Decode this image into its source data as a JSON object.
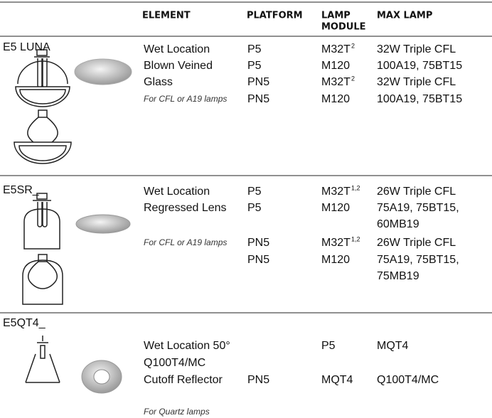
{
  "header": {
    "element": "ELEMENT",
    "platform": "PLATFORM",
    "lamp_module": [
      "LAMP",
      "MODULE"
    ],
    "max_lamp": "MAX LAMP"
  },
  "sections": [
    {
      "name": "E5 LUNA",
      "rows": [
        {
          "element": "Wet Location",
          "platform": "P5",
          "module": "M32T",
          "note": "2",
          "max_lamp": "32W Triple CFL"
        },
        {
          "element": "Blown Veined",
          "platform": "P5",
          "module": "M120",
          "max_lamp": "100A19, 75BT15"
        },
        {
          "element": "Glass",
          "platform": "PN5",
          "module": "M32T",
          "note": "2",
          "max_lamp": "32W Triple CFL"
        },
        {
          "caption": "For CFL or A19 lamps",
          "platform": "PN5",
          "module": "M120",
          "max_lamp": "100A19, 75BT15"
        }
      ]
    },
    {
      "name": "E5SR_",
      "rows": [
        {
          "element": "Wet Location",
          "platform": "P5",
          "module": "M32T",
          "note": "1,2",
          "max_lamp": "26W Triple CFL"
        },
        {
          "element": "Regressed Lens",
          "platform": "P5",
          "module": "M120",
          "max_lamp": "75A19, 75BT15,"
        },
        {
          "max_lamp": "60MB19"
        },
        {
          "caption": "For CFL or A19 lamps",
          "platform": "PN5",
          "module": "M32T",
          "note": "1,2",
          "max_lamp": "26W Triple CFL"
        },
        {
          "platform": "PN5",
          "module": "M120",
          "max_lamp": "75A19, 75BT15,"
        },
        {
          "max_lamp": "75MB19"
        }
      ]
    },
    {
      "name": "E5QT4_",
      "rows": [
        {
          "element": "Wet Location 50°",
          "module": "P5",
          "max_lamp": "MQT4"
        },
        {
          "element": "Q100T4/MC"
        },
        {
          "element": "Cutoff Reflector",
          "platform": "PN5",
          "module": "MQT4",
          "max_lamp": "Q100T4/MC"
        },
        {
          "caption": "For Quartz lamps"
        }
      ]
    }
  ]
}
